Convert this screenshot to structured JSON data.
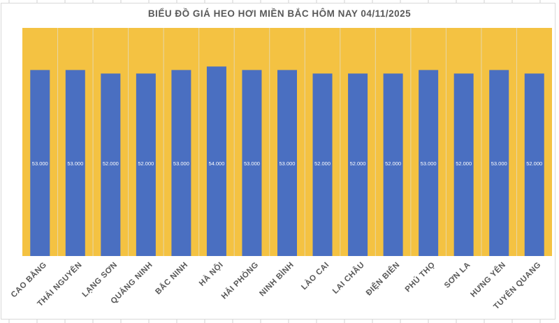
{
  "chart_data": {
    "type": "bar",
    "title": "BIỂU ĐỒ GIÁ HEO HƠI MIỀN BẮC HÔM NAY 04/11/2025",
    "categories": [
      "CAO BẰNG",
      "THÁI NGUYÊN",
      "LẠNG SƠN",
      "QUẢNG NINH",
      "BẮC NINH",
      "HÀ NỘI",
      "HẢI PHÒNG",
      "NINH BÌNH",
      "LÀO CAI",
      "LAI CHÂU",
      "ĐIỆN BIÊN",
      "PHÚ THỌ",
      "SƠN LA",
      "HƯNG YÊN",
      "TUYÊN QUANG"
    ],
    "values": [
      53000,
      53000,
      52000,
      52000,
      53000,
      54000,
      53000,
      53000,
      52000,
      52000,
      52000,
      53000,
      52000,
      53000,
      52000
    ],
    "data_labels": [
      "53.000",
      "53.000",
      "52.000",
      "52.000",
      "53.000",
      "54.000",
      "53.000",
      "53.000",
      "52.000",
      "52.000",
      "52.000",
      "53.000",
      "52.000",
      "53.000",
      "52.000"
    ],
    "ylim": [
      0,
      65000
    ],
    "grid": false,
    "legend": "none",
    "colors": {
      "bar": "#4a6fc1",
      "plot_background": "#f4c242",
      "title": "#595959"
    }
  }
}
